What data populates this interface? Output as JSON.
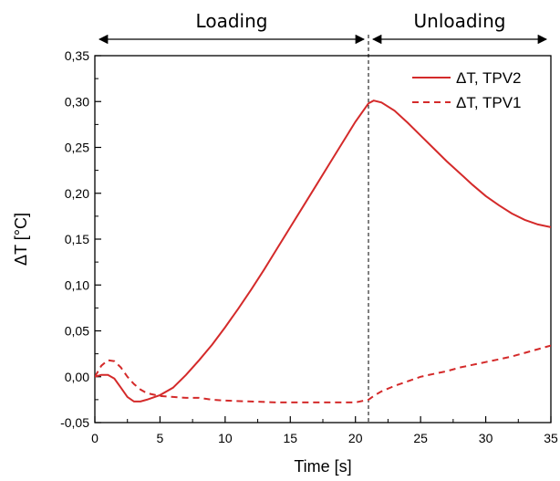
{
  "chart_data": {
    "type": "line",
    "xlabel": "Time [s]",
    "ylabel": "ΔT [°C]",
    "xlim": [
      0,
      35
    ],
    "ylim": [
      -0.05,
      0.35
    ],
    "x_ticks": [
      0,
      5,
      10,
      15,
      20,
      25,
      30,
      35
    ],
    "x_tick_labels": [
      "0",
      "5",
      "10",
      "15",
      "20",
      "25",
      "30",
      "35"
    ],
    "y_ticks": [
      -0.05,
      0,
      0.05,
      0.1,
      0.15,
      0.2,
      0.25,
      0.3,
      0.35
    ],
    "y_tick_labels": [
      "-0,05",
      "0,00",
      "0,05",
      "0,10",
      "0,15",
      "0,20",
      "0,25",
      "0,30",
      "0,35"
    ],
    "grid": false,
    "legend_position": "top-right",
    "phases": [
      {
        "label": "Loading",
        "start": 0,
        "end": 21
      },
      {
        "label": "Unloading",
        "start": 21,
        "end": 35
      }
    ],
    "divider_x": 21,
    "color": "#d42a2a",
    "series": [
      {
        "name": "ΔT, TPV2",
        "style": "solid",
        "points": [
          [
            0,
            0.0
          ],
          [
            0.5,
            0.002
          ],
          [
            1,
            0.002
          ],
          [
            1.5,
            -0.002
          ],
          [
            2,
            -0.012
          ],
          [
            2.5,
            -0.022
          ],
          [
            3,
            -0.027
          ],
          [
            3.5,
            -0.027
          ],
          [
            4,
            -0.025
          ],
          [
            5,
            -0.02
          ],
          [
            6,
            -0.012
          ],
          [
            7,
            0.002
          ],
          [
            8,
            0.018
          ],
          [
            9,
            0.035
          ],
          [
            10,
            0.054
          ],
          [
            11,
            0.074
          ],
          [
            12,
            0.095
          ],
          [
            13,
            0.117
          ],
          [
            14,
            0.14
          ],
          [
            15,
            0.163
          ],
          [
            16,
            0.186
          ],
          [
            17,
            0.209
          ],
          [
            18,
            0.232
          ],
          [
            19,
            0.255
          ],
          [
            20,
            0.278
          ],
          [
            21,
            0.298
          ],
          [
            21.4,
            0.301
          ],
          [
            22,
            0.299
          ],
          [
            23,
            0.29
          ],
          [
            24,
            0.277
          ],
          [
            25,
            0.263
          ],
          [
            26,
            0.249
          ],
          [
            27,
            0.235
          ],
          [
            28,
            0.222
          ],
          [
            29,
            0.209
          ],
          [
            30,
            0.197
          ],
          [
            31,
            0.187
          ],
          [
            32,
            0.178
          ],
          [
            33,
            0.171
          ],
          [
            34,
            0.166
          ],
          [
            35,
            0.163
          ]
        ]
      },
      {
        "name": "ΔT, TPV1",
        "style": "dashed",
        "points": [
          [
            0,
            0.0
          ],
          [
            0.5,
            0.012
          ],
          [
            1,
            0.018
          ],
          [
            1.5,
            0.017
          ],
          [
            2,
            0.01
          ],
          [
            2.5,
            0.0
          ],
          [
            3,
            -0.008
          ],
          [
            3.5,
            -0.014
          ],
          [
            4,
            -0.018
          ],
          [
            5,
            -0.021
          ],
          [
            6,
            -0.022
          ],
          [
            7,
            -0.023
          ],
          [
            8,
            -0.023
          ],
          [
            9,
            -0.025
          ],
          [
            10,
            -0.026
          ],
          [
            12,
            -0.027
          ],
          [
            14,
            -0.028
          ],
          [
            16,
            -0.028
          ],
          [
            18,
            -0.028
          ],
          [
            20,
            -0.028
          ],
          [
            21,
            -0.025
          ],
          [
            21.5,
            -0.02
          ],
          [
            22,
            -0.016
          ],
          [
            23,
            -0.01
          ],
          [
            24,
            -0.005
          ],
          [
            25,
            0.0
          ],
          [
            26,
            0.003
          ],
          [
            27,
            0.006
          ],
          [
            28,
            0.01
          ],
          [
            29,
            0.013
          ],
          [
            30,
            0.016
          ],
          [
            31,
            0.019
          ],
          [
            32,
            0.022
          ],
          [
            33,
            0.026
          ],
          [
            34,
            0.03
          ],
          [
            35,
            0.034
          ]
        ]
      }
    ]
  }
}
